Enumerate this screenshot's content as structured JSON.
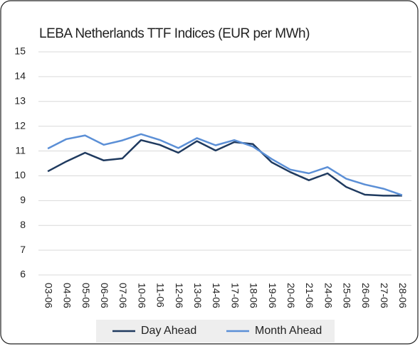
{
  "chart_data": {
    "type": "line",
    "title": "LEBA Netherlands TTF Indices (EUR per MWh)",
    "categories": [
      "03-06",
      "04-06",
      "05-06",
      "06-06",
      "07-06",
      "10-06",
      "11-06",
      "12-06",
      "13-06",
      "14-06",
      "17-06",
      "18-06",
      "19-06",
      "20-06",
      "21-06",
      "24-06",
      "25-06",
      "26-06",
      "27-06",
      "28-06"
    ],
    "series": [
      {
        "name": "Day Ahead",
        "color": "#1f3a5f",
        "values": [
          10.18,
          10.58,
          10.93,
          10.62,
          10.7,
          11.44,
          11.25,
          10.93,
          11.4,
          11.02,
          11.36,
          11.28,
          10.55,
          10.15,
          9.82,
          10.1,
          9.55,
          9.24,
          9.2,
          9.2
        ]
      },
      {
        "name": "Month Ahead",
        "color": "#5b8fd6",
        "values": [
          11.1,
          11.48,
          11.63,
          11.25,
          11.43,
          11.68,
          11.45,
          11.12,
          11.52,
          11.23,
          11.44,
          11.18,
          10.68,
          10.25,
          10.1,
          10.35,
          9.88,
          9.65,
          9.48,
          9.22
        ]
      }
    ],
    "ylim": [
      6,
      15
    ],
    "yticks": [
      6,
      7,
      8,
      9,
      10,
      11,
      12,
      13,
      14,
      15
    ],
    "grid": true,
    "legend": "bottom"
  }
}
